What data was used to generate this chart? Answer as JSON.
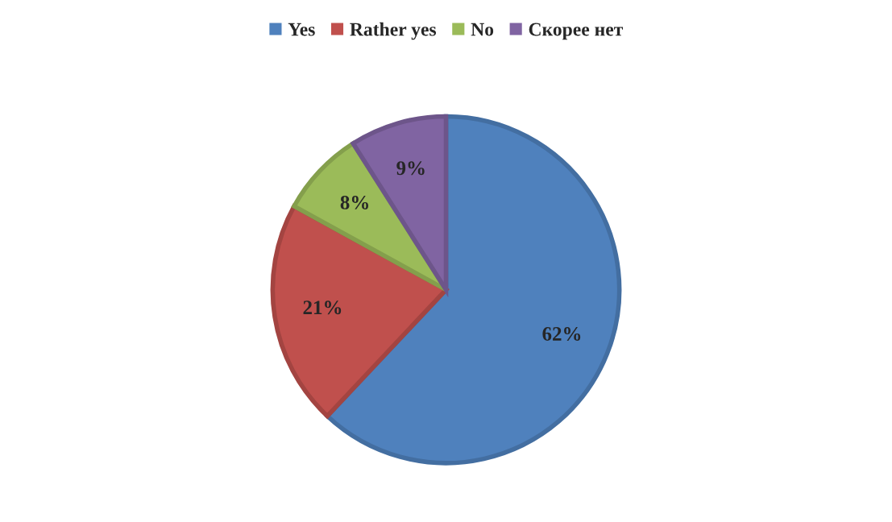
{
  "chart_data": {
    "type": "pie",
    "categories": [
      "Yes",
      "Rather yes",
      "No",
      "Скорее нет"
    ],
    "values": [
      62,
      21,
      8,
      9
    ],
    "value_labels": [
      "62%",
      "21%",
      "8%",
      "9%"
    ],
    "colors": [
      "#4f81bd",
      "#c0504d",
      "#9bbb59",
      "#8064a2"
    ],
    "legend": "top"
  }
}
